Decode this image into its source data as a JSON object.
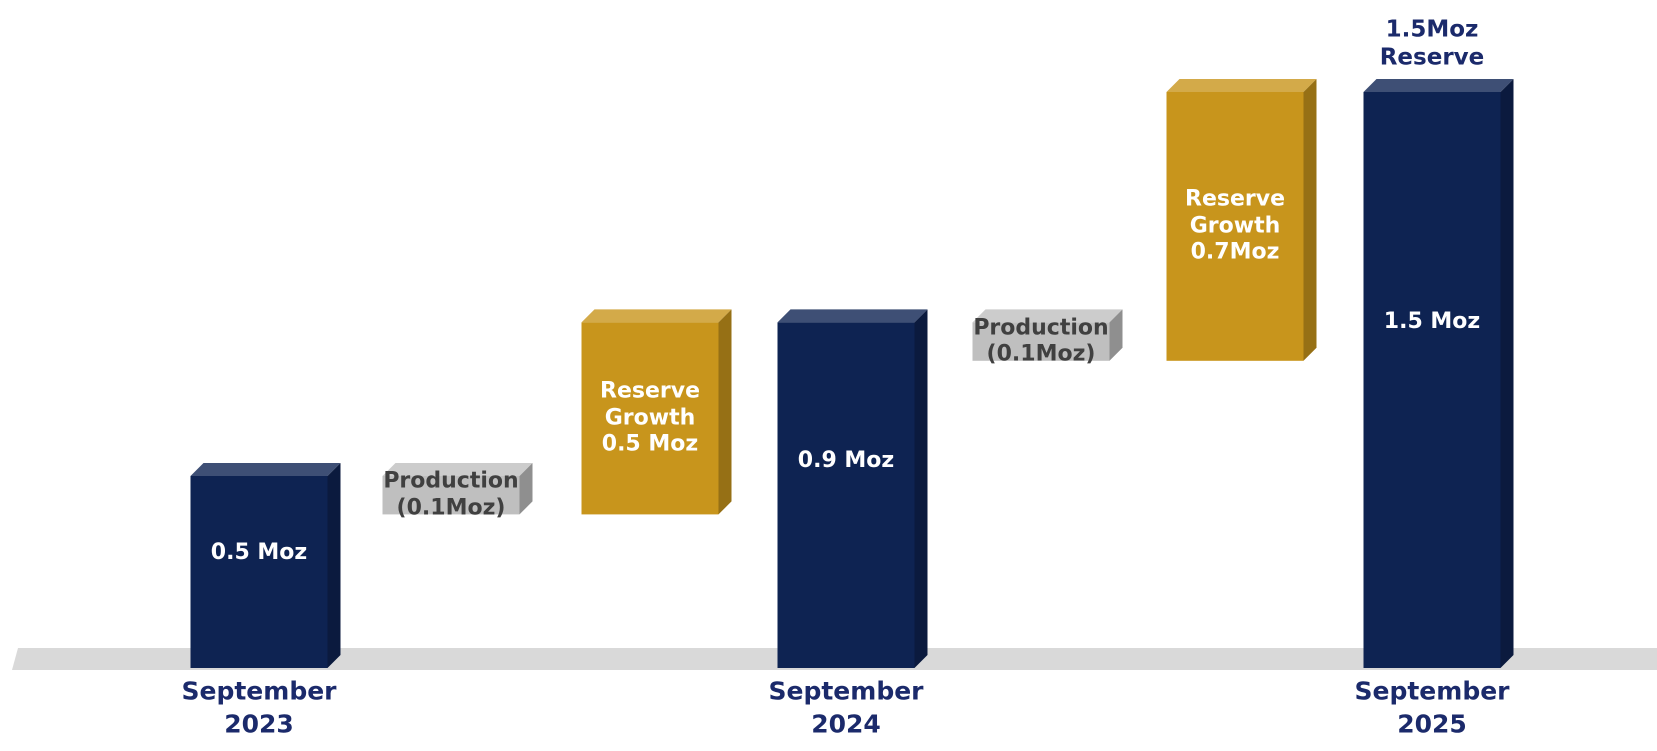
{
  "chart_data": {
    "type": "waterfall",
    "categories": [
      "September\n2023",
      null,
      null,
      "September\n2024",
      null,
      null,
      "September\n2025"
    ],
    "values": [
      0.5,
      -0.1,
      0.5,
      0.9,
      -0.1,
      0.7,
      1.5
    ],
    "measure": [
      "total",
      "relative",
      "relative",
      "total",
      "relative",
      "relative",
      "total"
    ],
    "value_labels": [
      "0.5 Moz",
      "Production\n(0.1Moz)",
      "Reserve\nGrowth\n0.5 Moz",
      "0.9 Moz",
      "Production\n(0.1Moz)",
      "Reserve\nGrowth\n0.7Moz",
      "1.5 Moz"
    ],
    "colors": {
      "total": "#0e2352",
      "increase": "#c8951c",
      "decrease": "#bfbfbf"
    },
    "annotation": "1.5Moz\nReserve"
  }
}
